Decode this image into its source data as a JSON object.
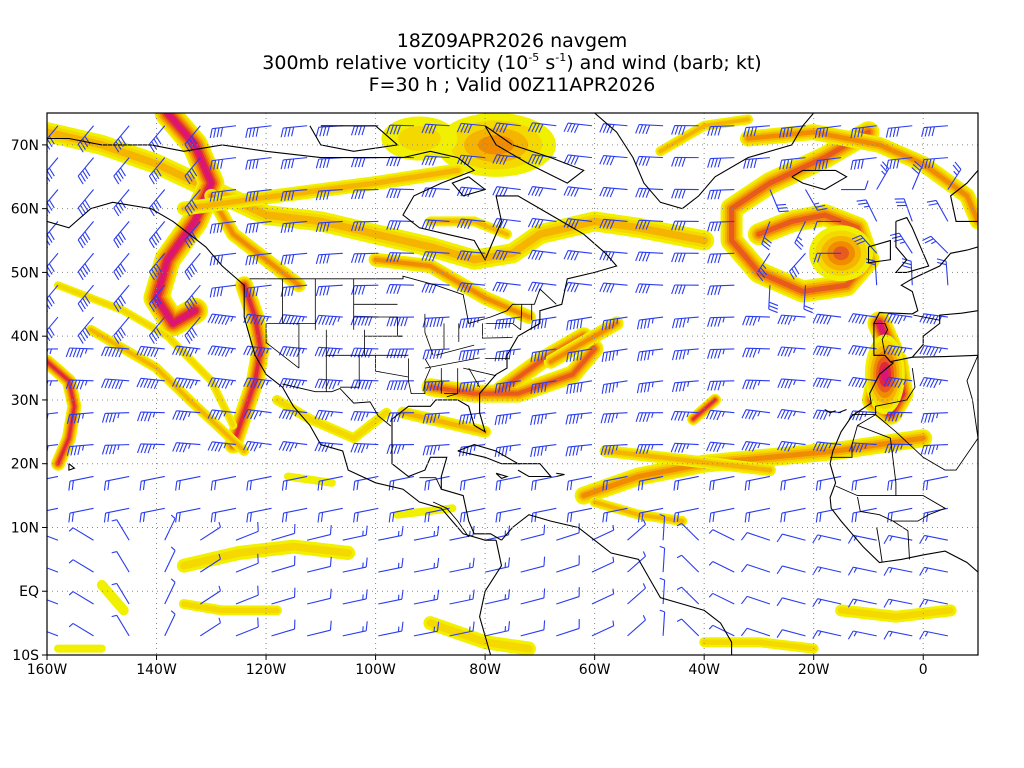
{
  "title": {
    "line1": "18Z09APR2026 navgem",
    "line2_prefix": "300mb relative vorticity (10",
    "line2_exp1": "-5",
    "line2_mid": " s",
    "line2_exp2": "-1",
    "line2_suffix": ") and wind (barb; kt)",
    "line3": "F=30 h ; Valid 00Z11APR2026"
  },
  "map": {
    "lon_range": [
      -160,
      10
    ],
    "lat_range": [
      -10,
      75
    ],
    "x_ticks": [
      {
        "value": -160,
        "label": "160W"
      },
      {
        "value": -140,
        "label": "140W"
      },
      {
        "value": -120,
        "label": "120W"
      },
      {
        "value": -100,
        "label": "100W"
      },
      {
        "value": -80,
        "label": "80W"
      },
      {
        "value": -60,
        "label": "60W"
      },
      {
        "value": -40,
        "label": "40W"
      },
      {
        "value": -20,
        "label": "20W"
      },
      {
        "value": 0,
        "label": "0"
      }
    ],
    "y_ticks": [
      {
        "value": 70,
        "label": "70N"
      },
      {
        "value": 60,
        "label": "60N"
      },
      {
        "value": 50,
        "label": "50N"
      },
      {
        "value": 40,
        "label": "40N"
      },
      {
        "value": 30,
        "label": "30N"
      },
      {
        "value": 20,
        "label": "20N"
      },
      {
        "value": 10,
        "label": "10N"
      },
      {
        "value": 0,
        "label": "EQ"
      },
      {
        "value": -10,
        "label": "10S"
      }
    ],
    "gridlines": true,
    "shading_colors": [
      "#f0f000",
      "#f5d800",
      "#f5b400",
      "#f08c00",
      "#e85a1e",
      "#e0283c",
      "#dc1478",
      "#e01eb4"
    ],
    "barb_color": "#2a3cf0"
  }
}
